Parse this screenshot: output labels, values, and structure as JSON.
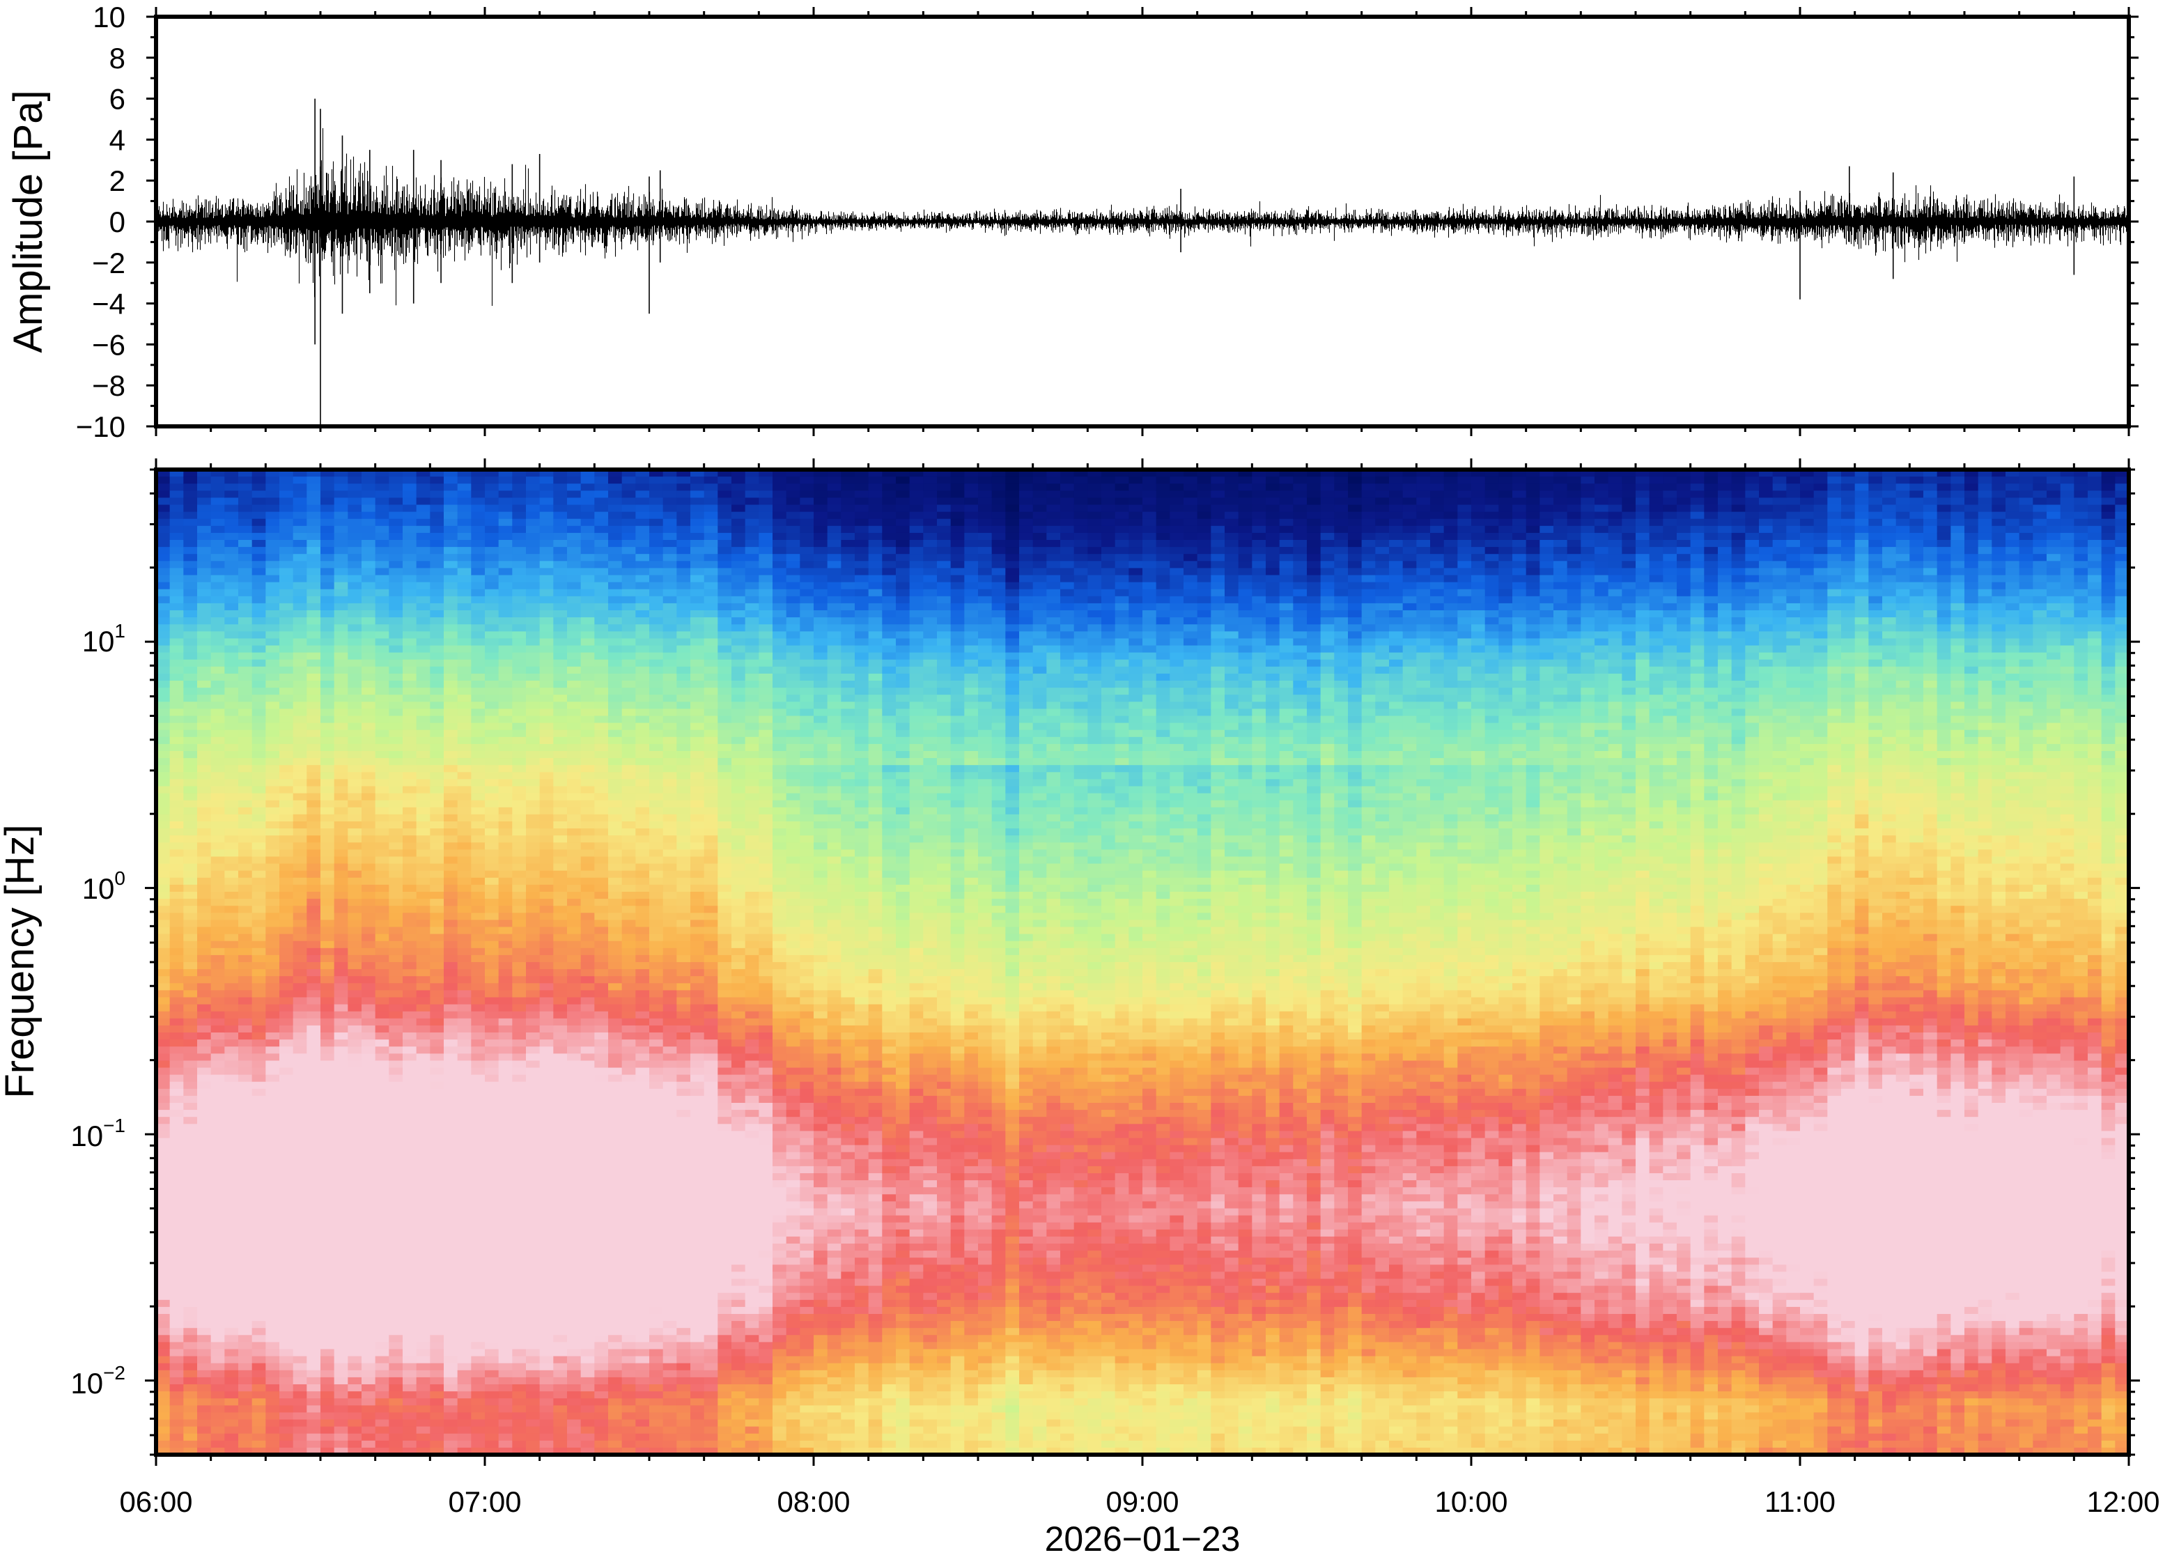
{
  "chart_data": [
    {
      "type": "line",
      "name": "waveform",
      "ylabel": "Amplitude [Pa]",
      "ylim": [
        -10,
        10
      ],
      "yticks": [
        10,
        8,
        6,
        4,
        2,
        0,
        -2,
        -4,
        -6,
        -8,
        -10
      ],
      "ytick_labels": [
        "10",
        "8",
        "6",
        "4",
        "2",
        "0",
        "−2",
        "−4",
        "−6",
        "−8",
        "−10"
      ],
      "xlim": [
        "06:00",
        "12:00"
      ],
      "envelope": [
        {
          "t": "06:00",
          "amp": 1.0
        },
        {
          "t": "06:10",
          "amp": 1.1
        },
        {
          "t": "06:20",
          "amp": 1.3
        },
        {
          "t": "06:25",
          "amp": 1.8
        },
        {
          "t": "06:30",
          "amp": 2.6
        },
        {
          "t": "06:35",
          "amp": 2.2
        },
        {
          "t": "06:45",
          "amp": 1.9
        },
        {
          "t": "07:00",
          "amp": 1.6
        },
        {
          "t": "07:15",
          "amp": 1.3
        },
        {
          "t": "07:30",
          "amp": 1.2
        },
        {
          "t": "07:45",
          "amp": 0.8
        },
        {
          "t": "08:00",
          "amp": 0.45
        },
        {
          "t": "08:20",
          "amp": 0.35
        },
        {
          "t": "08:40",
          "amp": 0.45
        },
        {
          "t": "09:00",
          "amp": 0.55
        },
        {
          "t": "09:20",
          "amp": 0.5
        },
        {
          "t": "09:40",
          "amp": 0.45
        },
        {
          "t": "10:00",
          "amp": 0.55
        },
        {
          "t": "10:20",
          "amp": 0.6
        },
        {
          "t": "10:40",
          "amp": 0.7
        },
        {
          "t": "11:00",
          "amp": 0.95
        },
        {
          "t": "11:10",
          "amp": 1.1
        },
        {
          "t": "11:20",
          "amp": 1.2
        },
        {
          "t": "11:40",
          "amp": 0.9
        },
        {
          "t": "12:00",
          "amp": 0.8
        }
      ],
      "spikes": [
        {
          "t": "06:29",
          "min": -6.0,
          "max": 6.0
        },
        {
          "t": "06:30",
          "min": -10.0,
          "max": 5.5
        },
        {
          "t": "06:34",
          "min": -4.5,
          "max": 4.2
        },
        {
          "t": "06:39",
          "min": -3.5,
          "max": 3.5
        },
        {
          "t": "06:47",
          "min": -4.0,
          "max": 3.5
        },
        {
          "t": "06:52",
          "min": -3.0,
          "max": 3.0
        },
        {
          "t": "07:05",
          "min": -3.0,
          "max": 2.8
        },
        {
          "t": "07:10",
          "min": -2.0,
          "max": 3.3
        },
        {
          "t": "07:30",
          "min": -4.5,
          "max": 2.2
        },
        {
          "t": "07:32",
          "min": -2.0,
          "max": 2.5
        },
        {
          "t": "09:07",
          "min": -1.5,
          "max": 1.6
        },
        {
          "t": "11:00",
          "min": -3.8,
          "max": 1.5
        },
        {
          "t": "11:09",
          "min": -1.0,
          "max": 2.7
        },
        {
          "t": "11:17",
          "min": -2.8,
          "max": 2.4
        },
        {
          "t": "11:50",
          "min": -2.6,
          "max": 2.2
        }
      ]
    },
    {
      "type": "heatmap",
      "name": "spectrogram",
      "ylabel": "Frequency [Hz]",
      "yscale": "log",
      "ylim_hz": [
        0.005,
        50
      ],
      "yticks": [
        {
          "base": "10",
          "exp": "1",
          "value": 10
        },
        {
          "base": "10",
          "exp": "0",
          "value": 1
        },
        {
          "base": "10",
          "exp": "−1",
          "value": 0.1
        },
        {
          "base": "10",
          "exp": "−2",
          "value": 0.01
        }
      ],
      "xlim": [
        "06:00",
        "12:00"
      ],
      "xticks": [
        "06:00",
        "07:00",
        "08:00",
        "09:00",
        "10:00",
        "11:00",
        "12:00"
      ],
      "xlabel": "2026−01−23",
      "colormap": [
        "#f8d0dc",
        "#f26262",
        "#fab14c",
        "#f7ea84",
        "#c8f590",
        "#7de8c4",
        "#3ab4f2",
        "#1060e0",
        "#0a1888",
        "#000d60"
      ],
      "profile_points": [
        {
          "f": 0.005,
          "level": 0.18
        },
        {
          "f": 0.008,
          "level": 0.2
        },
        {
          "f": 0.012,
          "level": 0.1
        },
        {
          "f": 0.02,
          "level": 0.0
        },
        {
          "f": 0.05,
          "level": -0.08
        },
        {
          "f": 0.1,
          "level": -0.02
        },
        {
          "f": 0.2,
          "level": 0.08
        },
        {
          "f": 0.4,
          "level": 0.22
        },
        {
          "f": 1.0,
          "level": 0.32
        },
        {
          "f": 3.0,
          "level": 0.43
        },
        {
          "f": 8.0,
          "level": 0.56
        },
        {
          "f": 15.0,
          "level": 0.7
        },
        {
          "f": 30.0,
          "level": 0.82
        },
        {
          "f": 50.0,
          "level": 0.88
        }
      ],
      "activity": [
        {
          "t": "06:00",
          "a": 0.0
        },
        {
          "t": "06:20",
          "a": 0.03
        },
        {
          "t": "06:30",
          "a": 0.06
        },
        {
          "t": "06:45",
          "a": 0.05
        },
        {
          "t": "07:00",
          "a": 0.05
        },
        {
          "t": "07:20",
          "a": 0.04
        },
        {
          "t": "07:40",
          "a": 0.02
        },
        {
          "t": "08:00",
          "a": -0.06
        },
        {
          "t": "08:30",
          "a": -0.1
        },
        {
          "t": "09:00",
          "a": -0.1
        },
        {
          "t": "09:30",
          "a": -0.08
        },
        {
          "t": "10:00",
          "a": -0.08
        },
        {
          "t": "10:30",
          "a": -0.05
        },
        {
          "t": "11:00",
          "a": -0.01
        },
        {
          "t": "11:15",
          "a": 0.03
        },
        {
          "t": "11:30",
          "a": 0.02
        },
        {
          "t": "12:00",
          "a": -0.01
        }
      ]
    }
  ]
}
